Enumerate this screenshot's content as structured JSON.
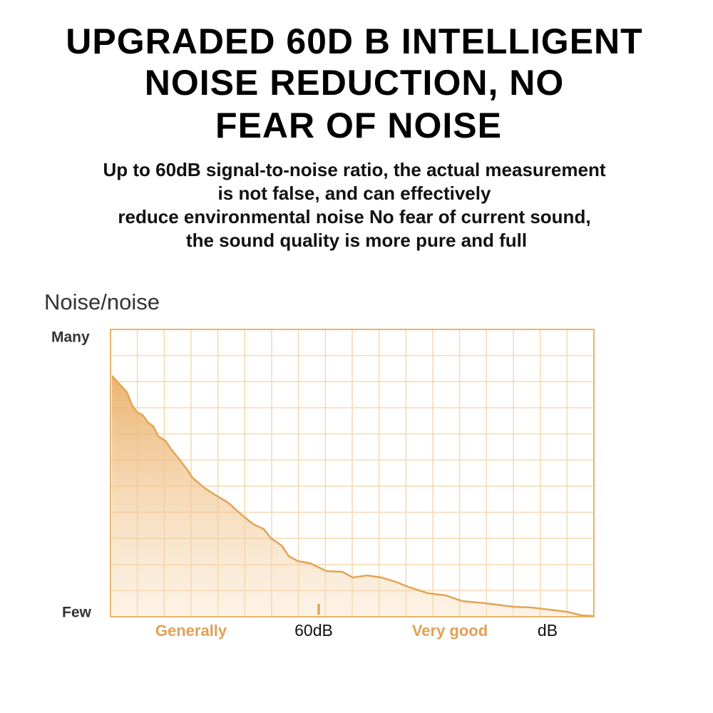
{
  "header": {
    "title": [
      "UPGRADED 60D B INTELLIGENT",
      "NOISE REDUCTION, NO",
      "FEAR OF NOISE"
    ],
    "subtitle": [
      "Up to 60dB signal-to-noise ratio, the actual measurement",
      "is not false, and can effectively",
      "reduce environmental noise No fear of current sound,",
      "the sound quality is more pure and full"
    ]
  },
  "chart": {
    "title": "Noise/noise",
    "y_top": "Many",
    "y_bottom": "Few",
    "x_labels": [
      "Generally",
      "60dB",
      "Very good",
      "dB"
    ]
  }
}
